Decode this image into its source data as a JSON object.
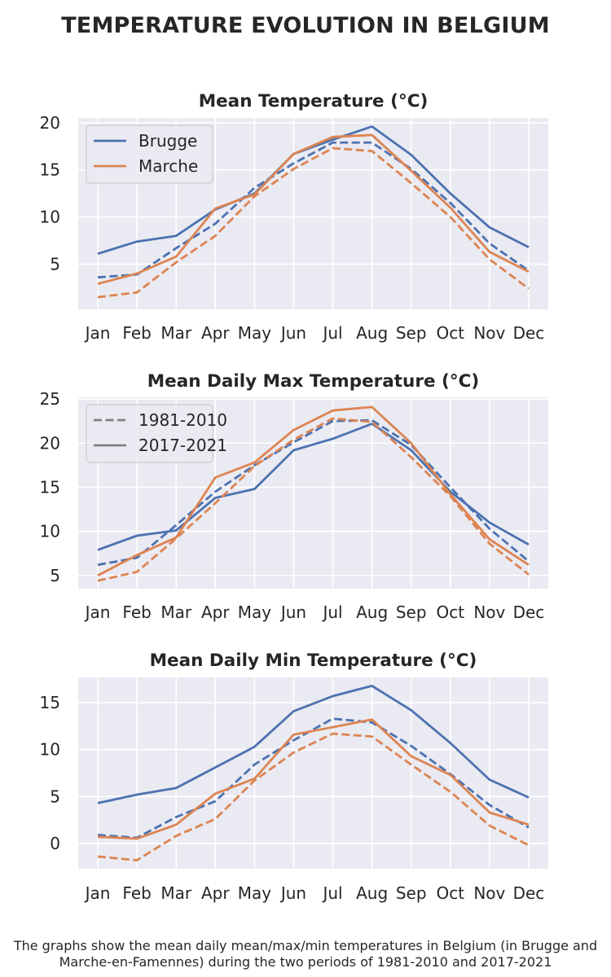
{
  "title": "TEMPERATURE EVOLUTION IN BELGIUM",
  "caption": {
    "line1": "The graphs show the mean daily mean/max/min temperatures in Belgium (in Brugge and",
    "line2": "Marche-en-Famennes) during the two periods of 1981-2010 and 2017-2021"
  },
  "colors": {
    "brugge": "#4c72b0",
    "marche": "#dd8452",
    "background": "#eaeaf2",
    "grid": "#ffffff",
    "legend_gray": "#808080"
  },
  "chart_data": [
    {
      "type": "line",
      "title": "Mean Temperature (°C)",
      "categories": [
        "Jan",
        "Feb",
        "Mar",
        "Apr",
        "May",
        "Jun",
        "Jul",
        "Aug",
        "Sep",
        "Oct",
        "Nov",
        "Dec"
      ],
      "ylim": [
        0.2,
        20.5
      ],
      "yticks": [
        5,
        10,
        15,
        20
      ],
      "grid": true,
      "legend": {
        "position": "top-left",
        "entries": [
          {
            "label": "Brugge",
            "color": "#4c72b0",
            "style": "solid"
          },
          {
            "label": "Marche",
            "color": "#dd8452",
            "style": "solid"
          }
        ]
      },
      "series": [
        {
          "city": "Brugge",
          "period": "2017-2021",
          "color": "#4c72b0",
          "style": "solid",
          "values": [
            6.1,
            7.4,
            8.0,
            10.8,
            12.5,
            16.7,
            18.2,
            19.6,
            16.6,
            12.5,
            8.9,
            6.8
          ]
        },
        {
          "city": "Brugge",
          "period": "1981-2010",
          "color": "#4c72b0",
          "style": "dashed",
          "values": [
            3.6,
            3.9,
            6.7,
            9.3,
            13.1,
            15.7,
            17.9,
            17.9,
            15.1,
            11.5,
            7.2,
            4.3
          ]
        },
        {
          "city": "Marche",
          "period": "2017-2021",
          "color": "#dd8452",
          "style": "solid",
          "values": [
            2.9,
            4.0,
            5.8,
            10.9,
            12.4,
            16.7,
            18.5,
            18.7,
            14.9,
            11.0,
            6.3,
            4.2
          ]
        },
        {
          "city": "Marche",
          "period": "1981-2010",
          "color": "#dd8452",
          "style": "dashed",
          "values": [
            1.5,
            2.0,
            5.2,
            8.0,
            12.2,
            15.1,
            17.3,
            17.0,
            13.6,
            10.0,
            5.5,
            2.4
          ]
        }
      ]
    },
    {
      "type": "line",
      "title": "Mean Daily Max Temperature (°C)",
      "categories": [
        "Jan",
        "Feb",
        "Mar",
        "Apr",
        "May",
        "Jun",
        "Jul",
        "Aug",
        "Sep",
        "Oct",
        "Nov",
        "Dec"
      ],
      "ylim": [
        3.5,
        25.2
      ],
      "yticks": [
        5,
        10,
        15,
        20,
        25
      ],
      "grid": true,
      "legend": {
        "position": "top-left",
        "entries": [
          {
            "label": "1981-2010",
            "color": "#808080",
            "style": "dashed"
          },
          {
            "label": "2017-2021",
            "color": "#808080",
            "style": "solid"
          }
        ]
      },
      "series": [
        {
          "city": "Brugge",
          "period": "2017-2021",
          "color": "#4c72b0",
          "style": "solid",
          "values": [
            7.9,
            9.5,
            10.1,
            13.8,
            14.8,
            19.2,
            20.5,
            22.2,
            19.2,
            14.5,
            11.0,
            8.5
          ]
        },
        {
          "city": "Brugge",
          "period": "1981-2010",
          "color": "#4c72b0",
          "style": "dashed",
          "values": [
            6.2,
            7.0,
            10.7,
            14.5,
            17.5,
            20.1,
            22.5,
            22.6,
            19.8,
            15.0,
            10.3,
            6.6
          ]
        },
        {
          "city": "Marche",
          "period": "2017-2021",
          "color": "#dd8452",
          "style": "solid",
          "values": [
            5.0,
            7.3,
            9.3,
            16.1,
            17.8,
            21.5,
            23.7,
            24.1,
            20.0,
            14.2,
            9.1,
            6.2
          ]
        },
        {
          "city": "Marche",
          "period": "1981-2010",
          "color": "#dd8452",
          "style": "dashed",
          "values": [
            4.4,
            5.4,
            9.2,
            13.2,
            17.4,
            20.4,
            22.8,
            22.4,
            18.4,
            14.0,
            8.6,
            5.1
          ]
        }
      ]
    },
    {
      "type": "line",
      "title": "Mean Daily Min Temperature (°C)",
      "categories": [
        "Jan",
        "Feb",
        "Mar",
        "Apr",
        "May",
        "Jun",
        "Jul",
        "Aug",
        "Sep",
        "Oct",
        "Nov",
        "Dec"
      ],
      "ylim": [
        -2.7,
        17.7
      ],
      "yticks": [
        0,
        5,
        10,
        15
      ],
      "grid": true,
      "legend": null,
      "series": [
        {
          "city": "Brugge",
          "period": "2017-2021",
          "color": "#4c72b0",
          "style": "solid",
          "values": [
            4.3,
            5.2,
            5.9,
            8.1,
            10.3,
            14.1,
            15.7,
            16.8,
            14.2,
            10.7,
            6.8,
            4.9
          ]
        },
        {
          "city": "Brugge",
          "period": "1981-2010",
          "color": "#4c72b0",
          "style": "dashed",
          "values": [
            0.9,
            0.6,
            2.8,
            4.5,
            8.4,
            11.0,
            13.3,
            12.9,
            10.4,
            7.4,
            4.1,
            1.7
          ]
        },
        {
          "city": "Marche",
          "period": "2017-2021",
          "color": "#dd8452",
          "style": "solid",
          "values": [
            0.7,
            0.5,
            2.0,
            5.3,
            6.9,
            11.6,
            12.4,
            13.2,
            9.3,
            7.3,
            3.3,
            2.0
          ]
        },
        {
          "city": "Marche",
          "period": "1981-2010",
          "color": "#dd8452",
          "style": "dashed",
          "values": [
            -1.4,
            -1.8,
            0.8,
            2.6,
            6.7,
            9.7,
            11.7,
            11.4,
            8.4,
            5.5,
            1.9,
            -0.2
          ]
        }
      ]
    }
  ]
}
